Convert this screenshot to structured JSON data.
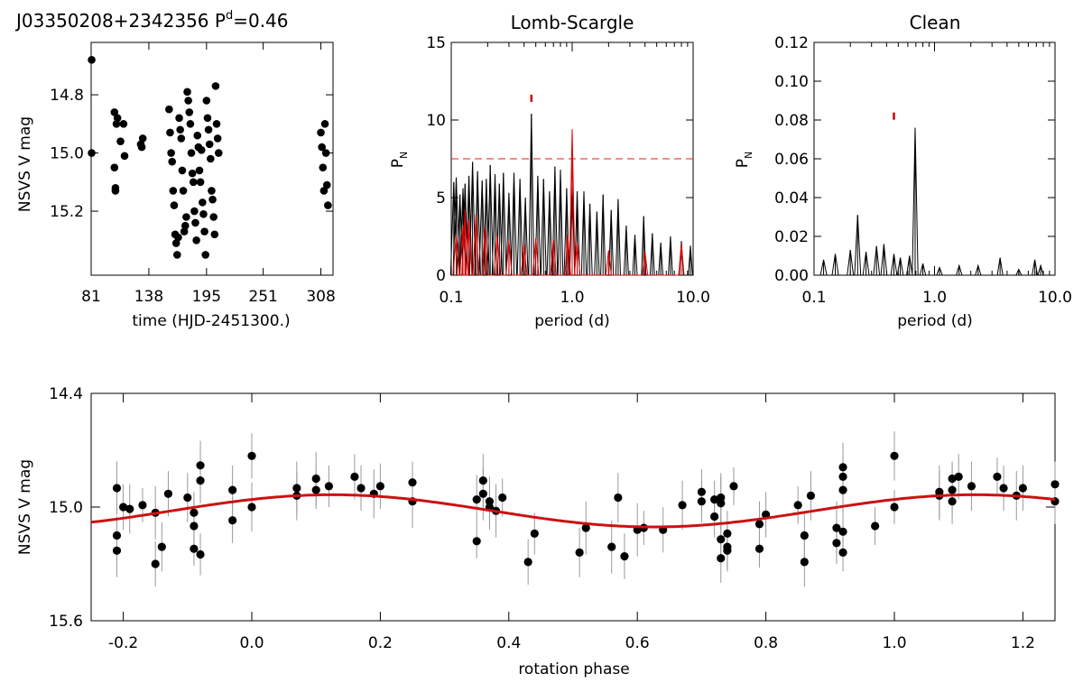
{
  "chart_data": [
    {
      "type": "scatter",
      "title": "J03350208+2342356  P^d=0.46",
      "title_main": "J03350208+2342356  P",
      "title_sup": "d",
      "title_tail": "=0.46",
      "xlabel": "time (HJD-2451300.)",
      "ylabel": "NSVS V mag",
      "xlim": [
        81,
        320
      ],
      "ylim": [
        15.42,
        14.62
      ],
      "y_inverted": true,
      "xticks": [
        "81",
        "138",
        "195",
        "251",
        "308"
      ],
      "yticks": [
        "14.8",
        "15.0",
        "15.2"
      ],
      "xtick_values": [
        81,
        138,
        195,
        251,
        308
      ],
      "ytick_values": [
        14.8,
        15.0,
        15.2
      ],
      "marker_color": "#000000",
      "points": [
        [
          81.5,
          14.68
        ],
        [
          81.5,
          15.0
        ],
        [
          104,
          14.86
        ],
        [
          104,
          15.05
        ],
        [
          105,
          15.12
        ],
        [
          105,
          15.13
        ],
        [
          106,
          14.9
        ],
        [
          107,
          14.88
        ],
        [
          110,
          14.96
        ],
        [
          113,
          14.9
        ],
        [
          114,
          15.01
        ],
        [
          130,
          14.97
        ],
        [
          131,
          14.98
        ],
        [
          132,
          14.95
        ],
        [
          158,
          14.85
        ],
        [
          159,
          14.93
        ],
        [
          160,
          15.0
        ],
        [
          161,
          15.03
        ],
        [
          162,
          15.13
        ],
        [
          163,
          15.18
        ],
        [
          164,
          15.28
        ],
        [
          165,
          15.31
        ],
        [
          166,
          15.35
        ],
        [
          167,
          15.29
        ],
        [
          168,
          14.88
        ],
        [
          169,
          14.92
        ],
        [
          170,
          14.95
        ],
        [
          171,
          15.06
        ],
        [
          172,
          15.13
        ],
        [
          173,
          15.27
        ],
        [
          174,
          15.25
        ],
        [
          175,
          15.22
        ],
        [
          176,
          14.79
        ],
        [
          177,
          14.82
        ],
        [
          178,
          14.86
        ],
        [
          179,
          14.9
        ],
        [
          180,
          15.0
        ],
        [
          181,
          15.07
        ],
        [
          182,
          15.1
        ],
        [
          183,
          15.2
        ],
        [
          184,
          15.24
        ],
        [
          185,
          15.3
        ],
        [
          186,
          14.94
        ],
        [
          187,
          14.98
        ],
        [
          188,
          15.06
        ],
        [
          189,
          15.1
        ],
        [
          190,
          14.99
        ],
        [
          191,
          15.17
        ],
        [
          192,
          15.21
        ],
        [
          193,
          15.27
        ],
        [
          194,
          15.35
        ],
        [
          195,
          14.82
        ],
        [
          196,
          14.88
        ],
        [
          197,
          14.92
        ],
        [
          198,
          14.97
        ],
        [
          199,
          15.02
        ],
        [
          200,
          15.13
        ],
        [
          201,
          15.16
        ],
        [
          202,
          15.22
        ],
        [
          203,
          15.28
        ],
        [
          204,
          14.77
        ],
        [
          205,
          14.9
        ],
        [
          206,
          14.95
        ],
        [
          207,
          15.0
        ],
        [
          308,
          14.93
        ],
        [
          309,
          14.98
        ],
        [
          310,
          15.05
        ],
        [
          311,
          15.13
        ],
        [
          312,
          14.9
        ],
        [
          313,
          15.0
        ],
        [
          314,
          15.11
        ],
        [
          315,
          15.18
        ]
      ]
    },
    {
      "type": "line",
      "title": "Lomb-Scargle",
      "xlabel": "period (d)",
      "ylabel": "P_N",
      "ylabel_main": "P",
      "ylabel_sub": "N",
      "x_scale": "log",
      "xlim": [
        0.1,
        10.0
      ],
      "ylim": [
        0,
        15
      ],
      "xticks": [
        "0.1",
        "1.0",
        "10.0"
      ],
      "xtick_values": [
        0.1,
        1.0,
        10.0
      ],
      "yticks": [
        "0",
        "5",
        "10",
        "15"
      ],
      "ytick_values": [
        0,
        5,
        10,
        15
      ],
      "significance_level": 7.5,
      "peak_marker_period": 0.46,
      "peak_marker_power": 11.4,
      "series": [
        {
          "color": "#000000",
          "peaks": [
            [
              0.105,
              6.0
            ],
            [
              0.11,
              6.3
            ],
            [
              0.118,
              5.2
            ],
            [
              0.125,
              5.6
            ],
            [
              0.13,
              5.9
            ],
            [
              0.14,
              6.4
            ],
            [
              0.15,
              7.3
            ],
            [
              0.165,
              6.7
            ],
            [
              0.18,
              6.1
            ],
            [
              0.195,
              6.2
            ],
            [
              0.21,
              7.1
            ],
            [
              0.23,
              6.5
            ],
            [
              0.25,
              5.9
            ],
            [
              0.27,
              6.6
            ],
            [
              0.3,
              5.3
            ],
            [
              0.33,
              6.6
            ],
            [
              0.37,
              6.2
            ],
            [
              0.41,
              5.0
            ],
            [
              0.46,
              10.4
            ],
            [
              0.52,
              6.4
            ],
            [
              0.58,
              6.2
            ],
            [
              0.65,
              5.4
            ],
            [
              0.72,
              7.0
            ],
            [
              0.8,
              6.8
            ],
            [
              0.9,
              5.6
            ],
            [
              1.0,
              6.0
            ],
            [
              1.1,
              5.4
            ],
            [
              1.25,
              5.4
            ],
            [
              1.4,
              4.6
            ],
            [
              1.6,
              4.1
            ],
            [
              1.8,
              5.2
            ],
            [
              2.1,
              4.2
            ],
            [
              2.4,
              4.9
            ],
            [
              2.8,
              3.2
            ],
            [
              3.3,
              2.6
            ],
            [
              3.9,
              3.8
            ],
            [
              4.6,
              2.7
            ],
            [
              5.4,
              2.1
            ],
            [
              6.5,
              2.5
            ],
            [
              8.0,
              2.2
            ],
            [
              9.5,
              1.9
            ]
          ]
        },
        {
          "color": "#dd0000",
          "peaks": [
            [
              0.11,
              2.6
            ],
            [
              0.125,
              3.2
            ],
            [
              0.13,
              4.2
            ],
            [
              0.14,
              3.6
            ],
            [
              0.16,
              3.9
            ],
            [
              0.19,
              3.1
            ],
            [
              0.24,
              2.6
            ],
            [
              0.3,
              2.2
            ],
            [
              0.4,
              2.0
            ],
            [
              0.5,
              2.4
            ],
            [
              0.7,
              2.3
            ],
            [
              0.92,
              2.6
            ],
            [
              1.0,
              9.4
            ],
            [
              1.1,
              2.1
            ],
            [
              2.0,
              1.6
            ],
            [
              4.0,
              1.5
            ],
            [
              8.0,
              2.0
            ]
          ]
        }
      ]
    },
    {
      "type": "line",
      "title": "Clean",
      "xlabel": "period (d)",
      "ylabel": "P_N",
      "ylabel_main": "P",
      "ylabel_sub": "N",
      "x_scale": "log",
      "xlim": [
        0.1,
        10.0
      ],
      "ylim": [
        0,
        0.12
      ],
      "xticks": [
        "0.1",
        "1.0",
        "10.0"
      ],
      "xtick_values": [
        0.1,
        1.0,
        10.0
      ],
      "yticks": [
        "0.00",
        "0.02",
        "0.04",
        "0.06",
        "0.08",
        "0.10",
        "0.12"
      ],
      "ytick_values": [
        0.0,
        0.02,
        0.04,
        0.06,
        0.08,
        0.1,
        0.12
      ],
      "peak_marker_period": 0.46,
      "peak_marker_power": 0.082,
      "series": [
        {
          "color": "#000000",
          "peaks": [
            [
              0.12,
              0.008
            ],
            [
              0.15,
              0.011
            ],
            [
              0.2,
              0.013
            ],
            [
              0.23,
              0.031
            ],
            [
              0.27,
              0.012
            ],
            [
              0.33,
              0.015
            ],
            [
              0.38,
              0.016
            ],
            [
              0.46,
              0.011
            ],
            [
              0.52,
              0.009
            ],
            [
              0.62,
              0.01
            ],
            [
              0.69,
              0.076
            ],
            [
              0.8,
              0.006
            ],
            [
              1.1,
              0.004
            ],
            [
              1.6,
              0.005
            ],
            [
              2.3,
              0.005
            ],
            [
              3.5,
              0.009
            ],
            [
              5.0,
              0.003
            ],
            [
              6.8,
              0.008
            ],
            [
              7.6,
              0.005
            ]
          ]
        }
      ]
    },
    {
      "type": "scatter",
      "xlabel": "rotation phase",
      "ylabel": "NSVS V mag",
      "xlim": [
        -0.25,
        1.25
      ],
      "ylim": [
        15.6,
        14.4
      ],
      "y_inverted": true,
      "xticks": [
        "-0.2",
        "0.0",
        "0.2",
        "0.4",
        "0.6",
        "0.8",
        "1.0",
        "1.2"
      ],
      "xtick_values": [
        -0.2,
        0.0,
        0.2,
        0.4,
        0.6,
        0.8,
        1.0,
        1.2
      ],
      "yticks": [
        "14.4",
        "15.0",
        "15.6"
      ],
      "ytick_values": [
        14.4,
        15.0,
        15.6
      ],
      "marker_color": "#000000",
      "errorbar_color": "#999999",
      "model_color": "#cc1111",
      "model": {
        "offset": 15.02,
        "amplitude": 0.085,
        "peak_phase": 0.125
      },
      "points": [
        [
          -0.21,
          14.9,
          0.14
        ],
        [
          -0.21,
          15.15,
          0.1
        ],
        [
          -0.21,
          15.23,
          0.14
        ],
        [
          -0.2,
          15.0,
          0.12
        ],
        [
          -0.19,
          15.01,
          0.13
        ],
        [
          -0.17,
          14.99,
          0.09
        ],
        [
          -0.15,
          15.3,
          0.12
        ],
        [
          -0.15,
          15.03,
          0.14
        ],
        [
          -0.14,
          15.21,
          0.13
        ],
        [
          -0.13,
          14.93,
          0.12
        ],
        [
          -0.1,
          14.95,
          0.13
        ],
        [
          -0.09,
          15.03,
          0.11
        ],
        [
          -0.09,
          15.1,
          0.14
        ],
        [
          -0.09,
          15.22,
          0.09
        ],
        [
          -0.08,
          14.78,
          0.13
        ],
        [
          -0.08,
          14.86,
          0.12
        ],
        [
          -0.08,
          15.25,
          0.11
        ],
        [
          -0.03,
          14.91,
          0.13
        ],
        [
          -0.03,
          15.07,
          0.12
        ],
        [
          0.0,
          14.73,
          0.12
        ],
        [
          0.0,
          15.0,
          0.13
        ],
        [
          0.07,
          14.9,
          0.14
        ],
        [
          0.07,
          14.94,
          0.13
        ],
        [
          0.1,
          14.85,
          0.14
        ],
        [
          0.1,
          14.91,
          0.1
        ],
        [
          0.12,
          14.89,
          0.11
        ],
        [
          0.16,
          14.84,
          0.12
        ],
        [
          0.17,
          14.9,
          0.12
        ],
        [
          0.19,
          14.93,
          0.13
        ],
        [
          0.2,
          14.89,
          0.12
        ],
        [
          0.25,
          14.97,
          0.14
        ],
        [
          0.25,
          14.87,
          0.11
        ],
        [
          0.35,
          14.96,
          0.13
        ],
        [
          0.35,
          15.18,
          0.09
        ],
        [
          0.36,
          14.86,
          0.14
        ],
        [
          0.36,
          14.93,
          0.14
        ],
        [
          0.37,
          14.97,
          0.13
        ],
        [
          0.37,
          15.0,
          0.12
        ],
        [
          0.38,
          15.02,
          0.14
        ],
        [
          0.39,
          14.95,
          0.1
        ],
        [
          0.43,
          15.29,
          0.12
        ],
        [
          0.44,
          15.14,
          0.11
        ],
        [
          0.51,
          15.24,
          0.13
        ],
        [
          0.52,
          15.11,
          0.14
        ],
        [
          0.56,
          15.21,
          0.14
        ],
        [
          0.57,
          14.95,
          0.13
        ],
        [
          0.58,
          15.26,
          0.12
        ],
        [
          0.6,
          15.12,
          0.14
        ],
        [
          0.61,
          15.11,
          0.09
        ],
        [
          0.64,
          15.12,
          0.12
        ],
        [
          0.67,
          14.99,
          0.13
        ],
        [
          0.7,
          14.92,
          0.12
        ],
        [
          0.7,
          14.97,
          0.11
        ],
        [
          0.72,
          14.96,
          0.1
        ],
        [
          0.72,
          15.05,
          0.11
        ],
        [
          0.73,
          15.27,
          0.13
        ],
        [
          0.73,
          15.17,
          0.13
        ],
        [
          0.73,
          14.95,
          0.13
        ],
        [
          0.73,
          14.98,
          0.14
        ],
        [
          0.74,
          15.21,
          0.12
        ],
        [
          0.74,
          15.23,
          0.11
        ],
        [
          0.74,
          15.14,
          0.12
        ],
        [
          0.75,
          14.89,
          0.1
        ],
        [
          0.79,
          15.22,
          0.1
        ],
        [
          0.79,
          15.09,
          0.12
        ],
        [
          0.8,
          15.04,
          0.12
        ],
        [
          0.85,
          14.99,
          0.1
        ],
        [
          0.86,
          15.29,
          0.13
        ],
        [
          0.86,
          15.15,
          0.13
        ],
        [
          0.87,
          14.94,
          0.13
        ],
        [
          0.91,
          15.11,
          0.14
        ],
        [
          0.91,
          15.19,
          0.11
        ],
        [
          0.92,
          15.24,
          0.1
        ],
        [
          0.92,
          15.13,
          0.13
        ],
        [
          0.92,
          14.91,
          0.12
        ],
        [
          0.92,
          14.79,
          0.13
        ],
        [
          0.92,
          14.84,
          0.12
        ],
        [
          0.97,
          15.1,
          0.1
        ],
        [
          1.0,
          14.73,
          0.13
        ],
        [
          1.0,
          15.0,
          0.09
        ],
        [
          1.07,
          14.92,
          0.14
        ],
        [
          1.07,
          14.94,
          0.13
        ],
        [
          1.09,
          14.85,
          0.09
        ],
        [
          1.09,
          14.91,
          0.14
        ],
        [
          1.09,
          14.97,
          0.12
        ],
        [
          1.1,
          14.84,
          0.12
        ],
        [
          1.12,
          14.89,
          0.13
        ],
        [
          1.16,
          14.84,
          0.1
        ],
        [
          1.17,
          14.9,
          0.12
        ],
        [
          1.19,
          14.94,
          0.13
        ],
        [
          1.2,
          14.9,
          0.12
        ],
        [
          1.25,
          14.88,
          0.12
        ],
        [
          1.25,
          14.97,
          0.12
        ]
      ]
    }
  ]
}
